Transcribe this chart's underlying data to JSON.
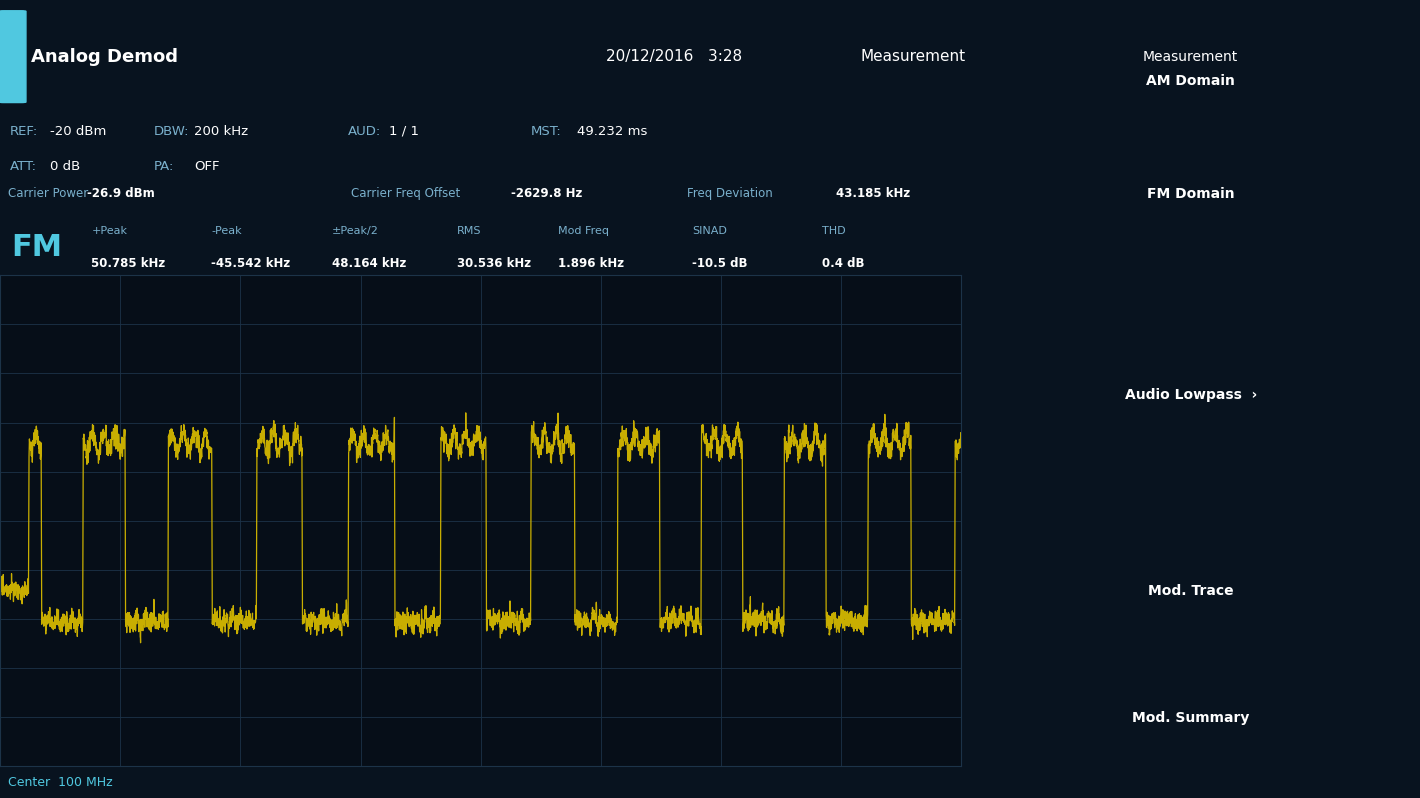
{
  "title_bar": "Analog Demod",
  "datetime": "20/12/2016   3:28",
  "measurement_label": "Measurement",
  "ref_label": "REF:",
  "ref_value": "-20 dBm",
  "dbw_label": "DBW:",
  "dbw_value": "200 kHz",
  "aud_label": "AUD:",
  "aud_value": "1 / 1",
  "mst_label": "MST:",
  "mst_value": "49.232 ms",
  "att_label": "ATT:",
  "att_value": "0 dB",
  "pa_label": "PA:",
  "pa_value": "OFF",
  "carrier_power_label": "Carrier Power",
  "carrier_power_value": "-26.9 dBm",
  "carrier_freq_offset_label": "Carrier Freq Offset",
  "carrier_freq_offset_value": "-2629.8 Hz",
  "freq_deviation_label": "Freq Deviation",
  "freq_deviation_value": "43.185 kHz",
  "fm_label": "FM",
  "plus_peak_label": "+Peak",
  "plus_peak_value": "50.785 kHz",
  "minus_peak_label": "-Peak",
  "minus_peak_value": "-45.542 kHz",
  "pm_peak2_label": "±Peak/2",
  "pm_peak2_value": "48.164 kHz",
  "rms_label": "RMS",
  "rms_value": "30.536 kHz",
  "mod_freq_label": "Mod Freq",
  "mod_freq_value": "1.896 kHz",
  "sinad_label": "SINAD",
  "sinad_value": "-10.5 dB",
  "thd_label": "THD",
  "thd_value": "0.4 dB",
  "center_label": "Center  100 MHz",
  "yticks": [
    -80,
    -60,
    -40,
    -20,
    0,
    20,
    40,
    60,
    80
  ],
  "bg_color": "#08131f",
  "plot_bg": "#060e18",
  "grid_color": "#1c3348",
  "trace_color": "#d4b800",
  "title_bg": "#0b1a27",
  "info_bg": "#1e4060",
  "info_bg2": "#0f2030",
  "sidebar_bg": "#1a3a55",
  "sidebar_btn_active": "#2a80c0",
  "sidebar_btn_inactive": "#1a3a55",
  "sidebar_btn_text": "#ffffff",
  "cyan_text": "#50c8e0",
  "white_text": "#ffffff",
  "label_text": "#7ab0cc",
  "sidebar_buttons": [
    "AM Domain",
    "FM Domain",
    "Audio Lowpass  ›",
    "Mod. Trace",
    "Mod. Summary"
  ],
  "active_button_idx": 1,
  "ylim": [
    -100,
    100
  ]
}
